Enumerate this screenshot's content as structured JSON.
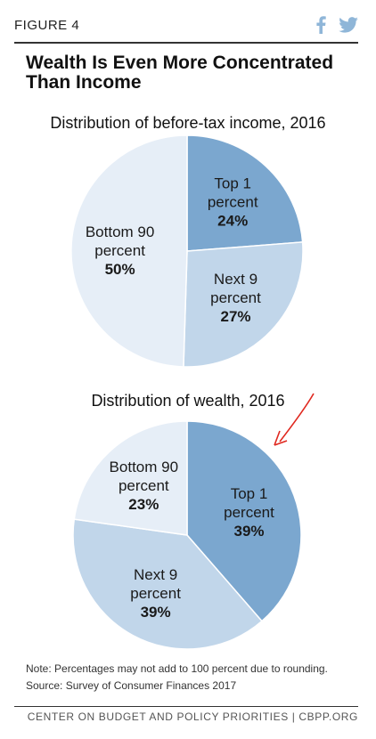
{
  "figure_label": "FIGURE 4",
  "social": [
    {
      "icon": "facebook-icon",
      "color": "#8fb6d8"
    },
    {
      "icon": "twitter-icon",
      "color": "#8fb6d8"
    }
  ],
  "title_lines": [
    "Wealth Is Even More Concentrated",
    "Than Income"
  ],
  "colors": {
    "top1": "#7ba7cf",
    "next9": "#c1d6ea",
    "bottom90": "#e6eef7",
    "annotation": "#e0281f"
  },
  "chart_data": [
    {
      "type": "pie",
      "title": "Distribution of before-tax income, 2016",
      "slices": [
        {
          "label_lines": [
            "Top 1",
            "percent"
          ],
          "value": 24,
          "value_label": "24%",
          "color_key": "top1"
        },
        {
          "label_lines": [
            "Next 9",
            "percent"
          ],
          "value": 27,
          "value_label": "27%",
          "color_key": "next9"
        },
        {
          "label_lines": [
            "Bottom 90",
            "percent"
          ],
          "value": 50,
          "value_label": "50%",
          "color_key": "bottom90"
        }
      ]
    },
    {
      "type": "pie",
      "title": "Distribution of wealth, 2016",
      "slices": [
        {
          "label_lines": [
            "Top 1",
            "percent"
          ],
          "value": 39,
          "value_label": "39%",
          "color_key": "top1"
        },
        {
          "label_lines": [
            "Next 9",
            "percent"
          ],
          "value": 39,
          "value_label": "39%",
          "color_key": "next9"
        },
        {
          "label_lines": [
            "Bottom 90",
            "percent"
          ],
          "value": 23,
          "value_label": "23%",
          "color_key": "bottom90"
        }
      ]
    }
  ],
  "notes": [
    "Note: Percentages may not add to 100 percent due to rounding.",
    "Source: Survey of Consumer Finances 2017"
  ],
  "footer": "CENTER ON BUDGET AND POLICY PRIORITIES | CBPP.ORG"
}
